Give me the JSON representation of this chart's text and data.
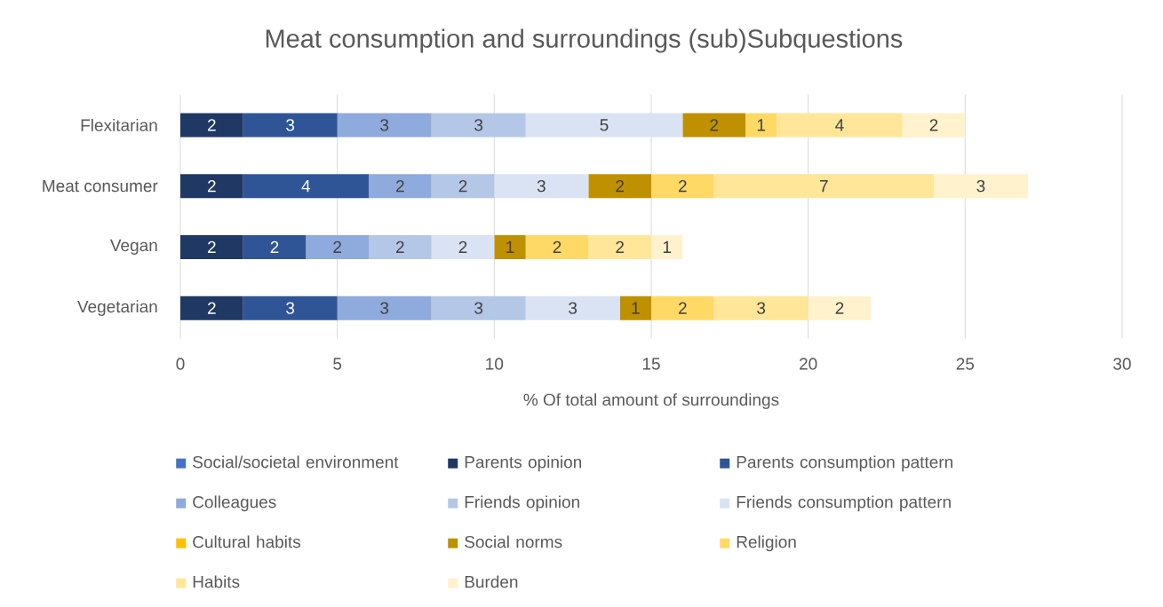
{
  "chart_data": {
    "type": "bar",
    "orientation": "horizontal",
    "stacked": true,
    "title": "Meat consumption and surroundings (sub)Subquestions",
    "xlabel": "% Of total amount of surroundings",
    "categories": [
      "Flexitarian",
      "Meat consumer",
      "Vegan",
      "Vegetarian"
    ],
    "series": [
      {
        "name": "Social/societal environment",
        "color": "#4472c4",
        "values": [
          null,
          null,
          null,
          null
        ]
      },
      {
        "name": "Parents opinion",
        "color": "#203864",
        "values": [
          2,
          2,
          2,
          2
        ]
      },
      {
        "name": "Parents consumption pattern",
        "color": "#2f5597",
        "values": [
          3,
          4,
          2,
          3
        ]
      },
      {
        "name": "Colleagues",
        "color": "#8faadc",
        "values": [
          3,
          2,
          2,
          3
        ]
      },
      {
        "name": "Friends opinion",
        "color": "#b4c7e7",
        "values": [
          3,
          2,
          2,
          3
        ]
      },
      {
        "name": "Friends consumption pattern",
        "color": "#dae3f3",
        "values": [
          5,
          3,
          2,
          3
        ]
      },
      {
        "name": "Cultural habits",
        "color": "#ffc000",
        "values": [
          null,
          null,
          null,
          null
        ]
      },
      {
        "name": "Social norms",
        "color": "#bf9000",
        "values": [
          2,
          2,
          1,
          1
        ]
      },
      {
        "name": "Religion",
        "color": "#ffd966",
        "values": [
          1,
          2,
          2,
          2
        ]
      },
      {
        "name": "Habits",
        "color": "#ffe699",
        "values": [
          4,
          7,
          2,
          3
        ]
      },
      {
        "name": "Burden",
        "color": "#fff2cc",
        "values": [
          2,
          3,
          1,
          2
        ]
      }
    ],
    "xlim": [
      0,
      30
    ],
    "xticks": [
      0,
      5,
      10,
      15,
      20,
      25,
      30
    ],
    "grid": "x",
    "legend": "bottom",
    "data_labels": true
  }
}
